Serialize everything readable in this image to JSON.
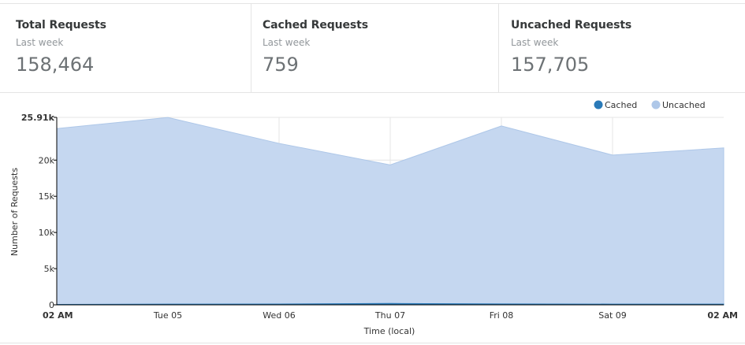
{
  "stats": [
    {
      "title": "Total Requests",
      "subtitle": "Last week",
      "value": "158,464"
    },
    {
      "title": "Cached Requests",
      "subtitle": "Last week",
      "value": "759"
    },
    {
      "title": "Uncached Requests",
      "subtitle": "Last week",
      "value": "157,705"
    }
  ],
  "colors": {
    "cached": "#2a7ab8",
    "uncached": "#aec7e8",
    "uncached_fill": "#c5d7f0",
    "grid": "#e6e6e6",
    "axis": "#000000"
  },
  "chart_data": {
    "type": "area",
    "stacked": true,
    "xlabel": "Time (local)",
    "ylabel": "Number of Requests",
    "x_ticks": [
      "02 AM",
      "Tue 05",
      "Wed 06",
      "Thu 07",
      "Fri 08",
      "Sat 09",
      "02 AM"
    ],
    "x_tick_bold": [
      true,
      false,
      false,
      false,
      false,
      false,
      true
    ],
    "x": [
      0,
      1,
      2,
      3,
      4,
      5,
      6
    ],
    "ylim": [
      0,
      25910
    ],
    "y_ticks": [
      0,
      5000,
      10000,
      15000,
      20000,
      25910
    ],
    "y_tick_labels": [
      "0",
      "5k",
      "10k",
      "15k",
      "20k",
      "25.91k"
    ],
    "grid": true,
    "legend": "top-right",
    "series": [
      {
        "name": "Cached",
        "values": [
          60,
          90,
          110,
          190,
          120,
          100,
          90
        ]
      },
      {
        "name": "Uncached",
        "values": [
          24300,
          25800,
          22200,
          19150,
          24600,
          20600,
          21600
        ]
      }
    ]
  }
}
